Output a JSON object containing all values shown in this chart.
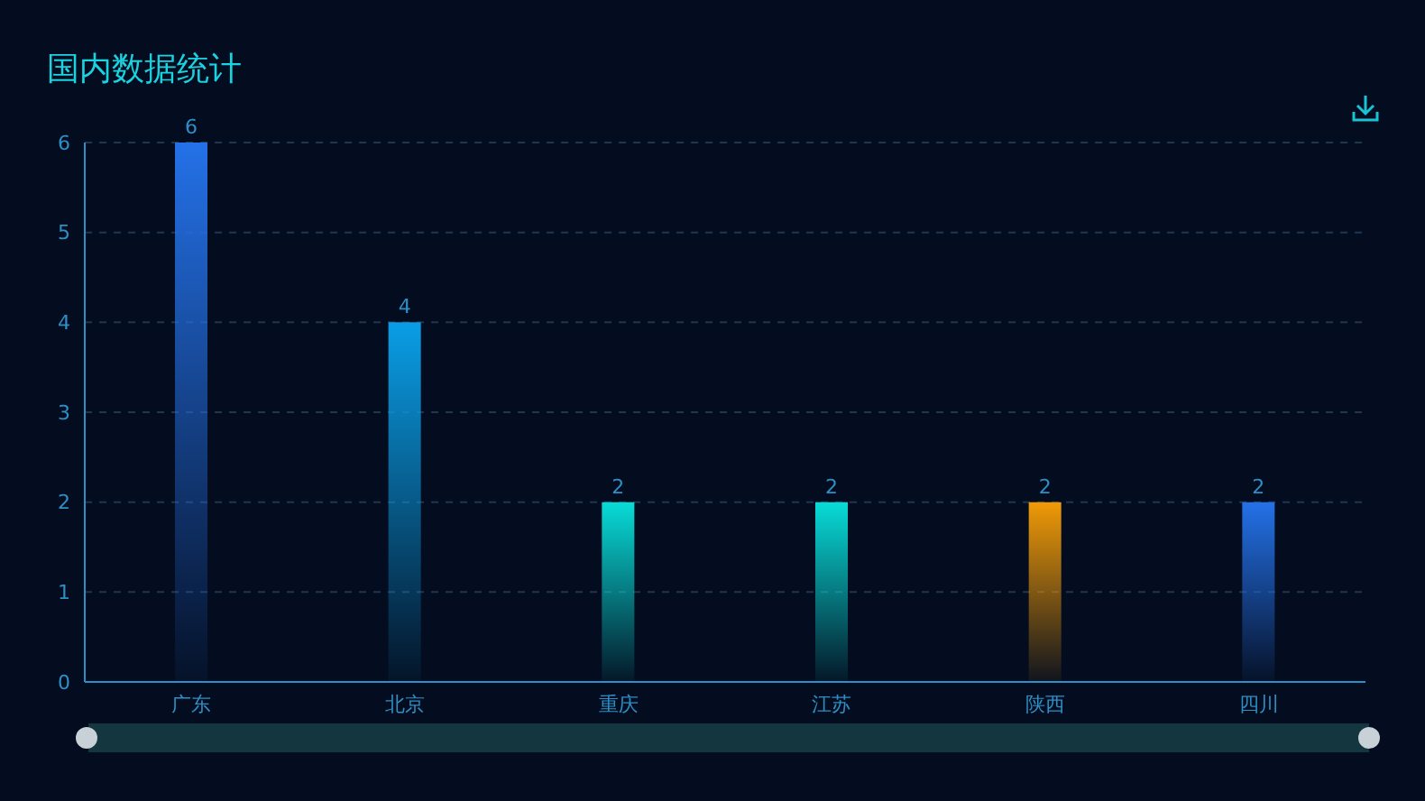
{
  "chart_data": {
    "type": "bar",
    "title": "国内数据统计",
    "categories": [
      "广东",
      "北京",
      "重庆",
      "江苏",
      "陕西",
      "四川"
    ],
    "values": [
      6,
      4,
      2,
      2,
      2,
      2
    ],
    "colors": [
      "#2471e8",
      "#0a9ee6",
      "#08dcd8",
      "#08dcd8",
      "#f09a08",
      "#2471e8"
    ],
    "ylim": [
      0,
      6
    ],
    "yticks": [
      0,
      1,
      2,
      3,
      4,
      5,
      6
    ],
    "grid": "y",
    "data_labels": true
  }
}
